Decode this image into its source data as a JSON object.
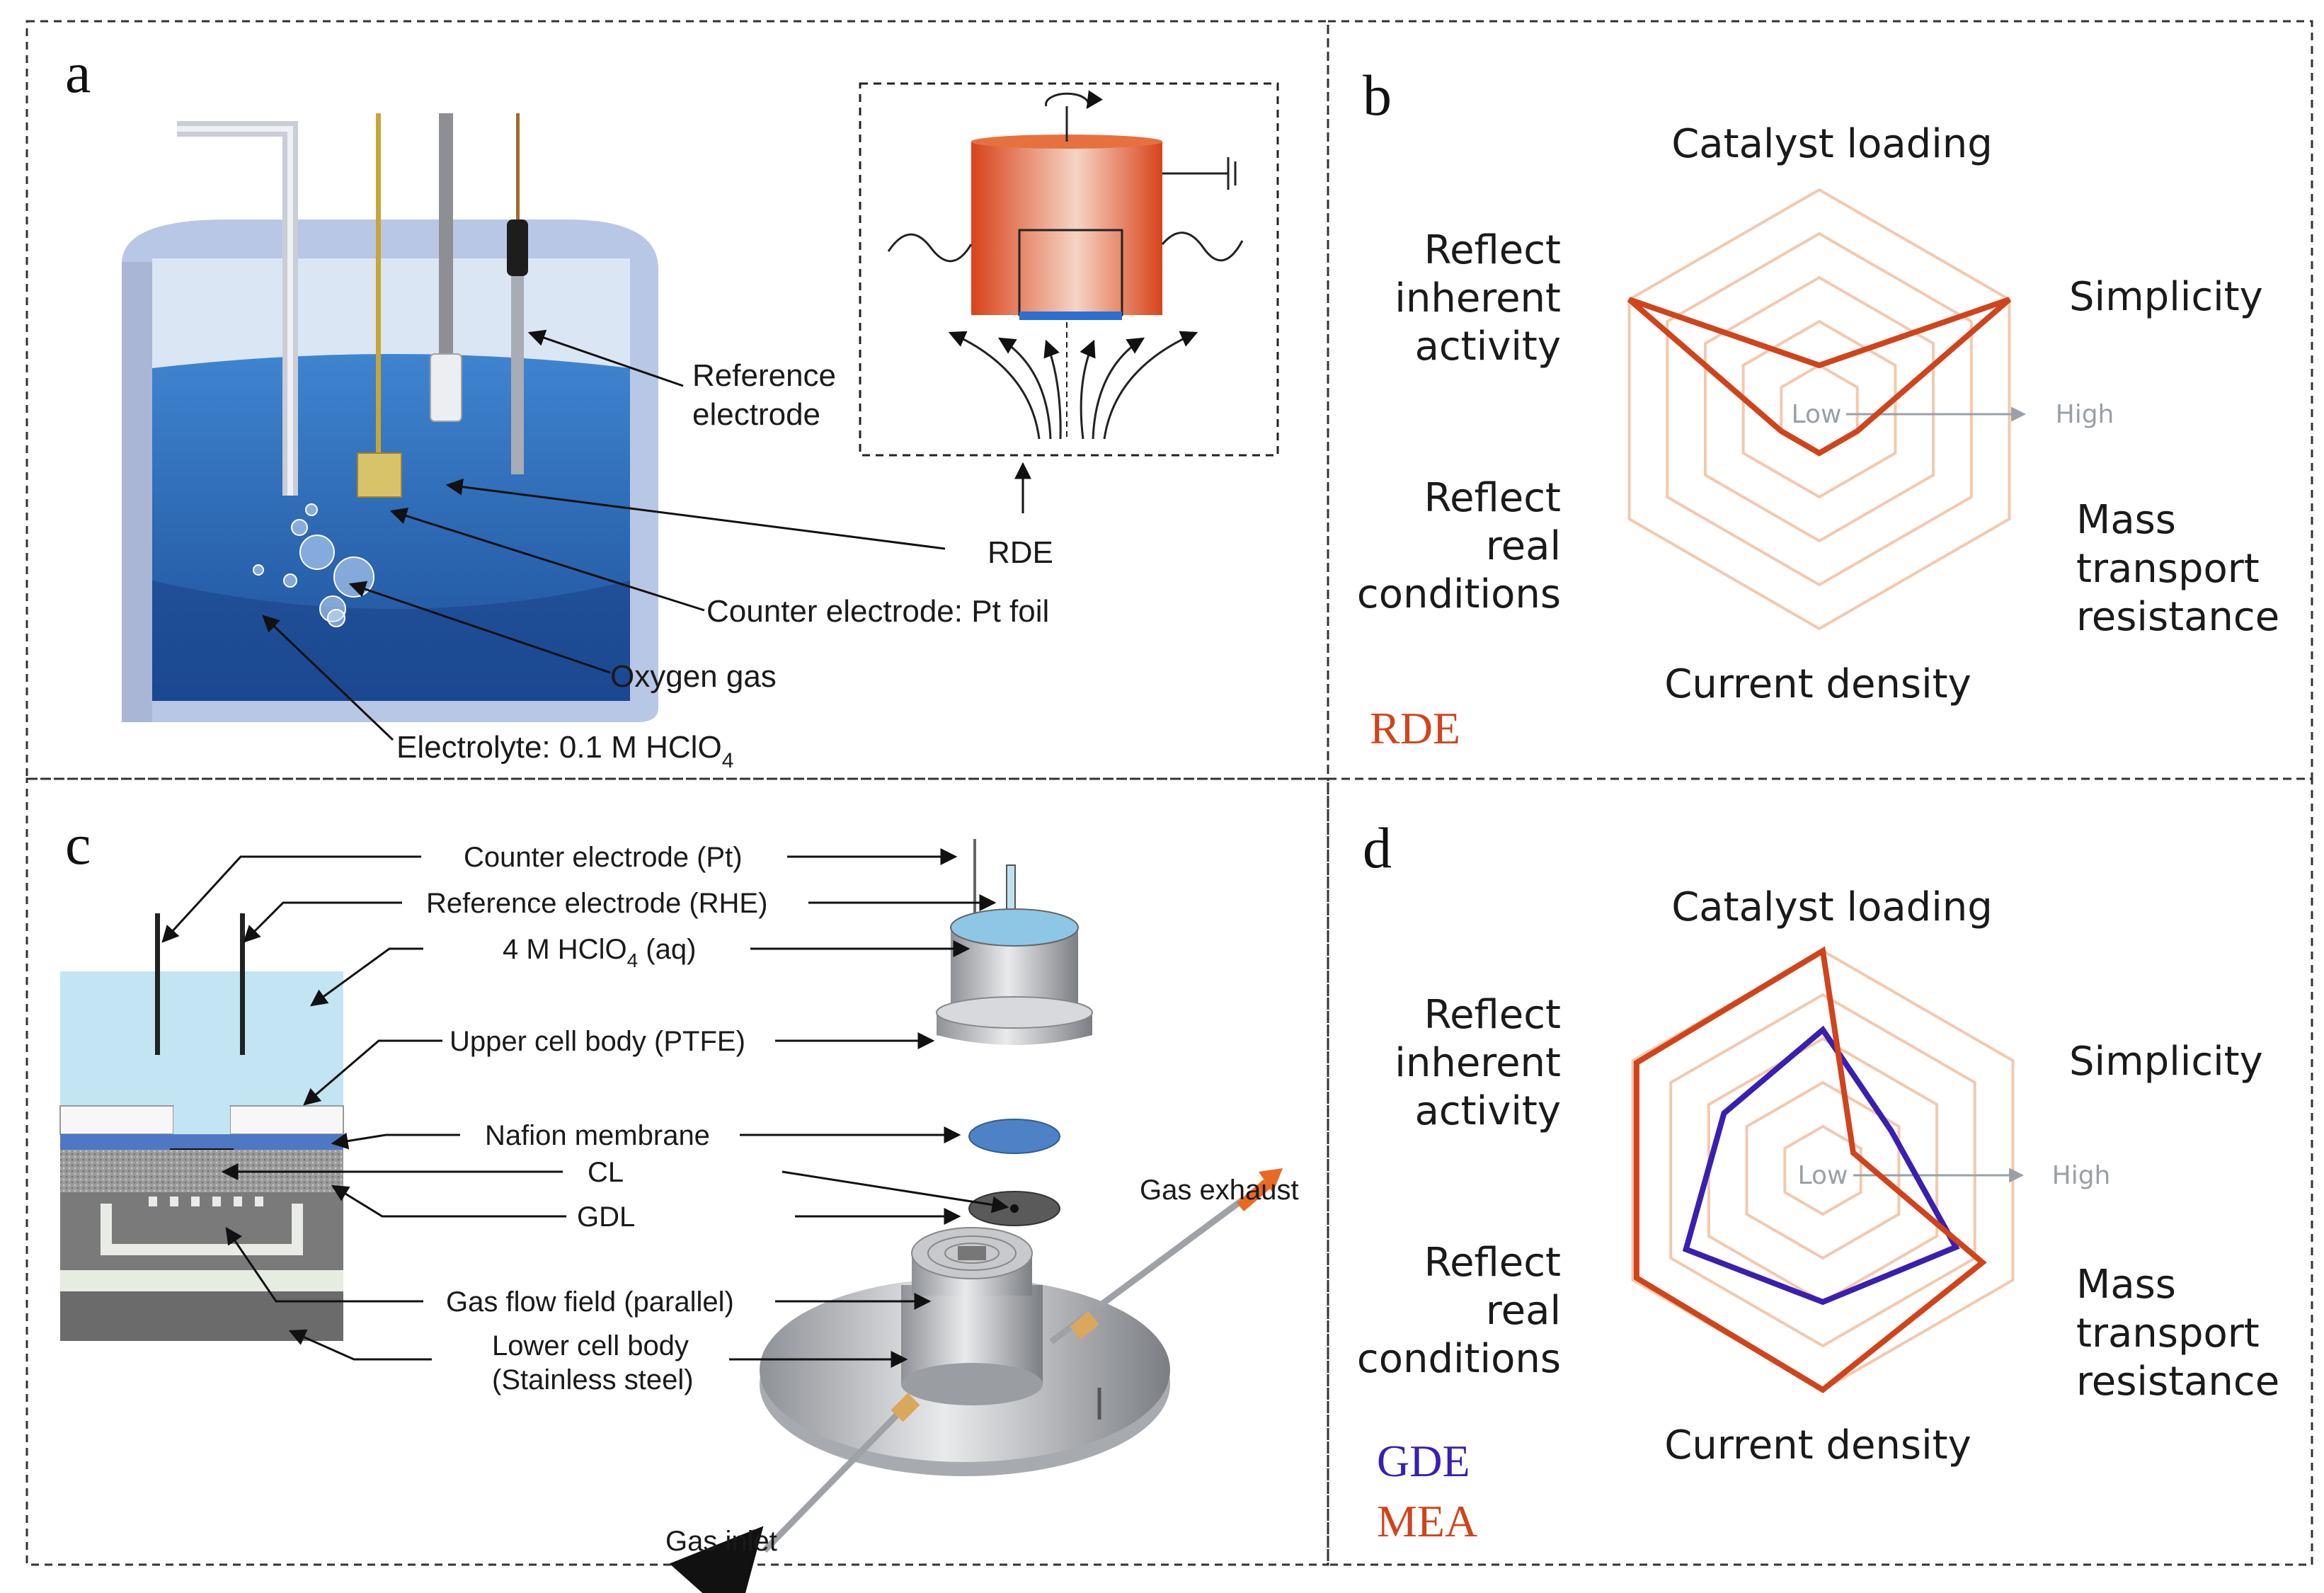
{
  "colors": {
    "accent": "#d0441c",
    "gde": "#3a1fb0",
    "grid": "#f2c9ad",
    "electrolyte": "#2f6db5",
    "cell": "#c9d6ea",
    "arrow": "#111111"
  },
  "panel_a": {
    "letter": "a",
    "labels": {
      "reference_electrode_1": "Reference",
      "reference_electrode_2": "electrode",
      "rde": "RDE",
      "counter_electrode": "Counter electrode: Pt foil",
      "oxygen_gas": "Oxygen gas",
      "electrolyte": "Electrolyte: 0.1 M HClO",
      "electrolyte_sub": "4"
    }
  },
  "panel_b": {
    "letter": "b",
    "legend": "RDE"
  },
  "panel_c": {
    "letter": "c",
    "labels": {
      "counter_electrode": "Counter electrode (Pt)",
      "reference_electrode": "Reference electrode (RHE)",
      "acid": "4 M HClO",
      "acid_sub": "4",
      "acid_suffix": " (aq)",
      "upper_cell": "Upper cell body (PTFE)",
      "nafion": "Nafion membrane",
      "cl": "CL",
      "gdl": "GDL",
      "flow_field": "Gas flow field (parallel)",
      "lower_cell_1": "Lower cell body",
      "lower_cell_2": "(Stainless steel)",
      "gas_exhaust": "Gas exhaust",
      "gas_inlet": "Gas inlet"
    }
  },
  "panel_d": {
    "letter": "d",
    "legend_gde": "GDE",
    "legend_mea": "MEA"
  },
  "radar_axes": {
    "catalyst_loading": "Catalyst loading",
    "simplicity": "Simplicity",
    "mass_transport": [
      "Mass",
      "transport",
      "resistance"
    ],
    "current_density": "Current density",
    "real_conditions": [
      "Reflect",
      "real",
      "conditions"
    ],
    "inherent_activity": [
      "Reflect",
      "inherent",
      "activity"
    ],
    "scale_low": "Low",
    "scale_high": "High"
  },
  "chart_data": [
    {
      "type": "radar",
      "panel": "b",
      "axes": [
        "Catalyst loading",
        "Simplicity",
        "Mass transport resistance",
        "Current density",
        "Reflect real conditions",
        "Reflect inherent activity"
      ],
      "scale": [
        "Low",
        "High"
      ],
      "levels": 5,
      "range": [
        0,
        5
      ],
      "series": [
        {
          "name": "RDE",
          "values": [
            1,
            5,
            1,
            1,
            1,
            5
          ]
        }
      ]
    },
    {
      "type": "radar",
      "panel": "d",
      "axes": [
        "Catalyst loading",
        "Simplicity",
        "Mass transport resistance",
        "Current density",
        "Reflect real conditions",
        "Reflect inherent activity"
      ],
      "scale": [
        "Low",
        "High"
      ],
      "levels": 5,
      "range": [
        0,
        5
      ],
      "series": [
        {
          "name": "GDE",
          "values": [
            3.2,
            1.8,
            3.5,
            3,
            3.6,
            2.6
          ]
        },
        {
          "name": "MEA",
          "values": [
            5,
            0.8,
            4.2,
            5,
            4.9,
            4.9
          ]
        }
      ]
    }
  ]
}
